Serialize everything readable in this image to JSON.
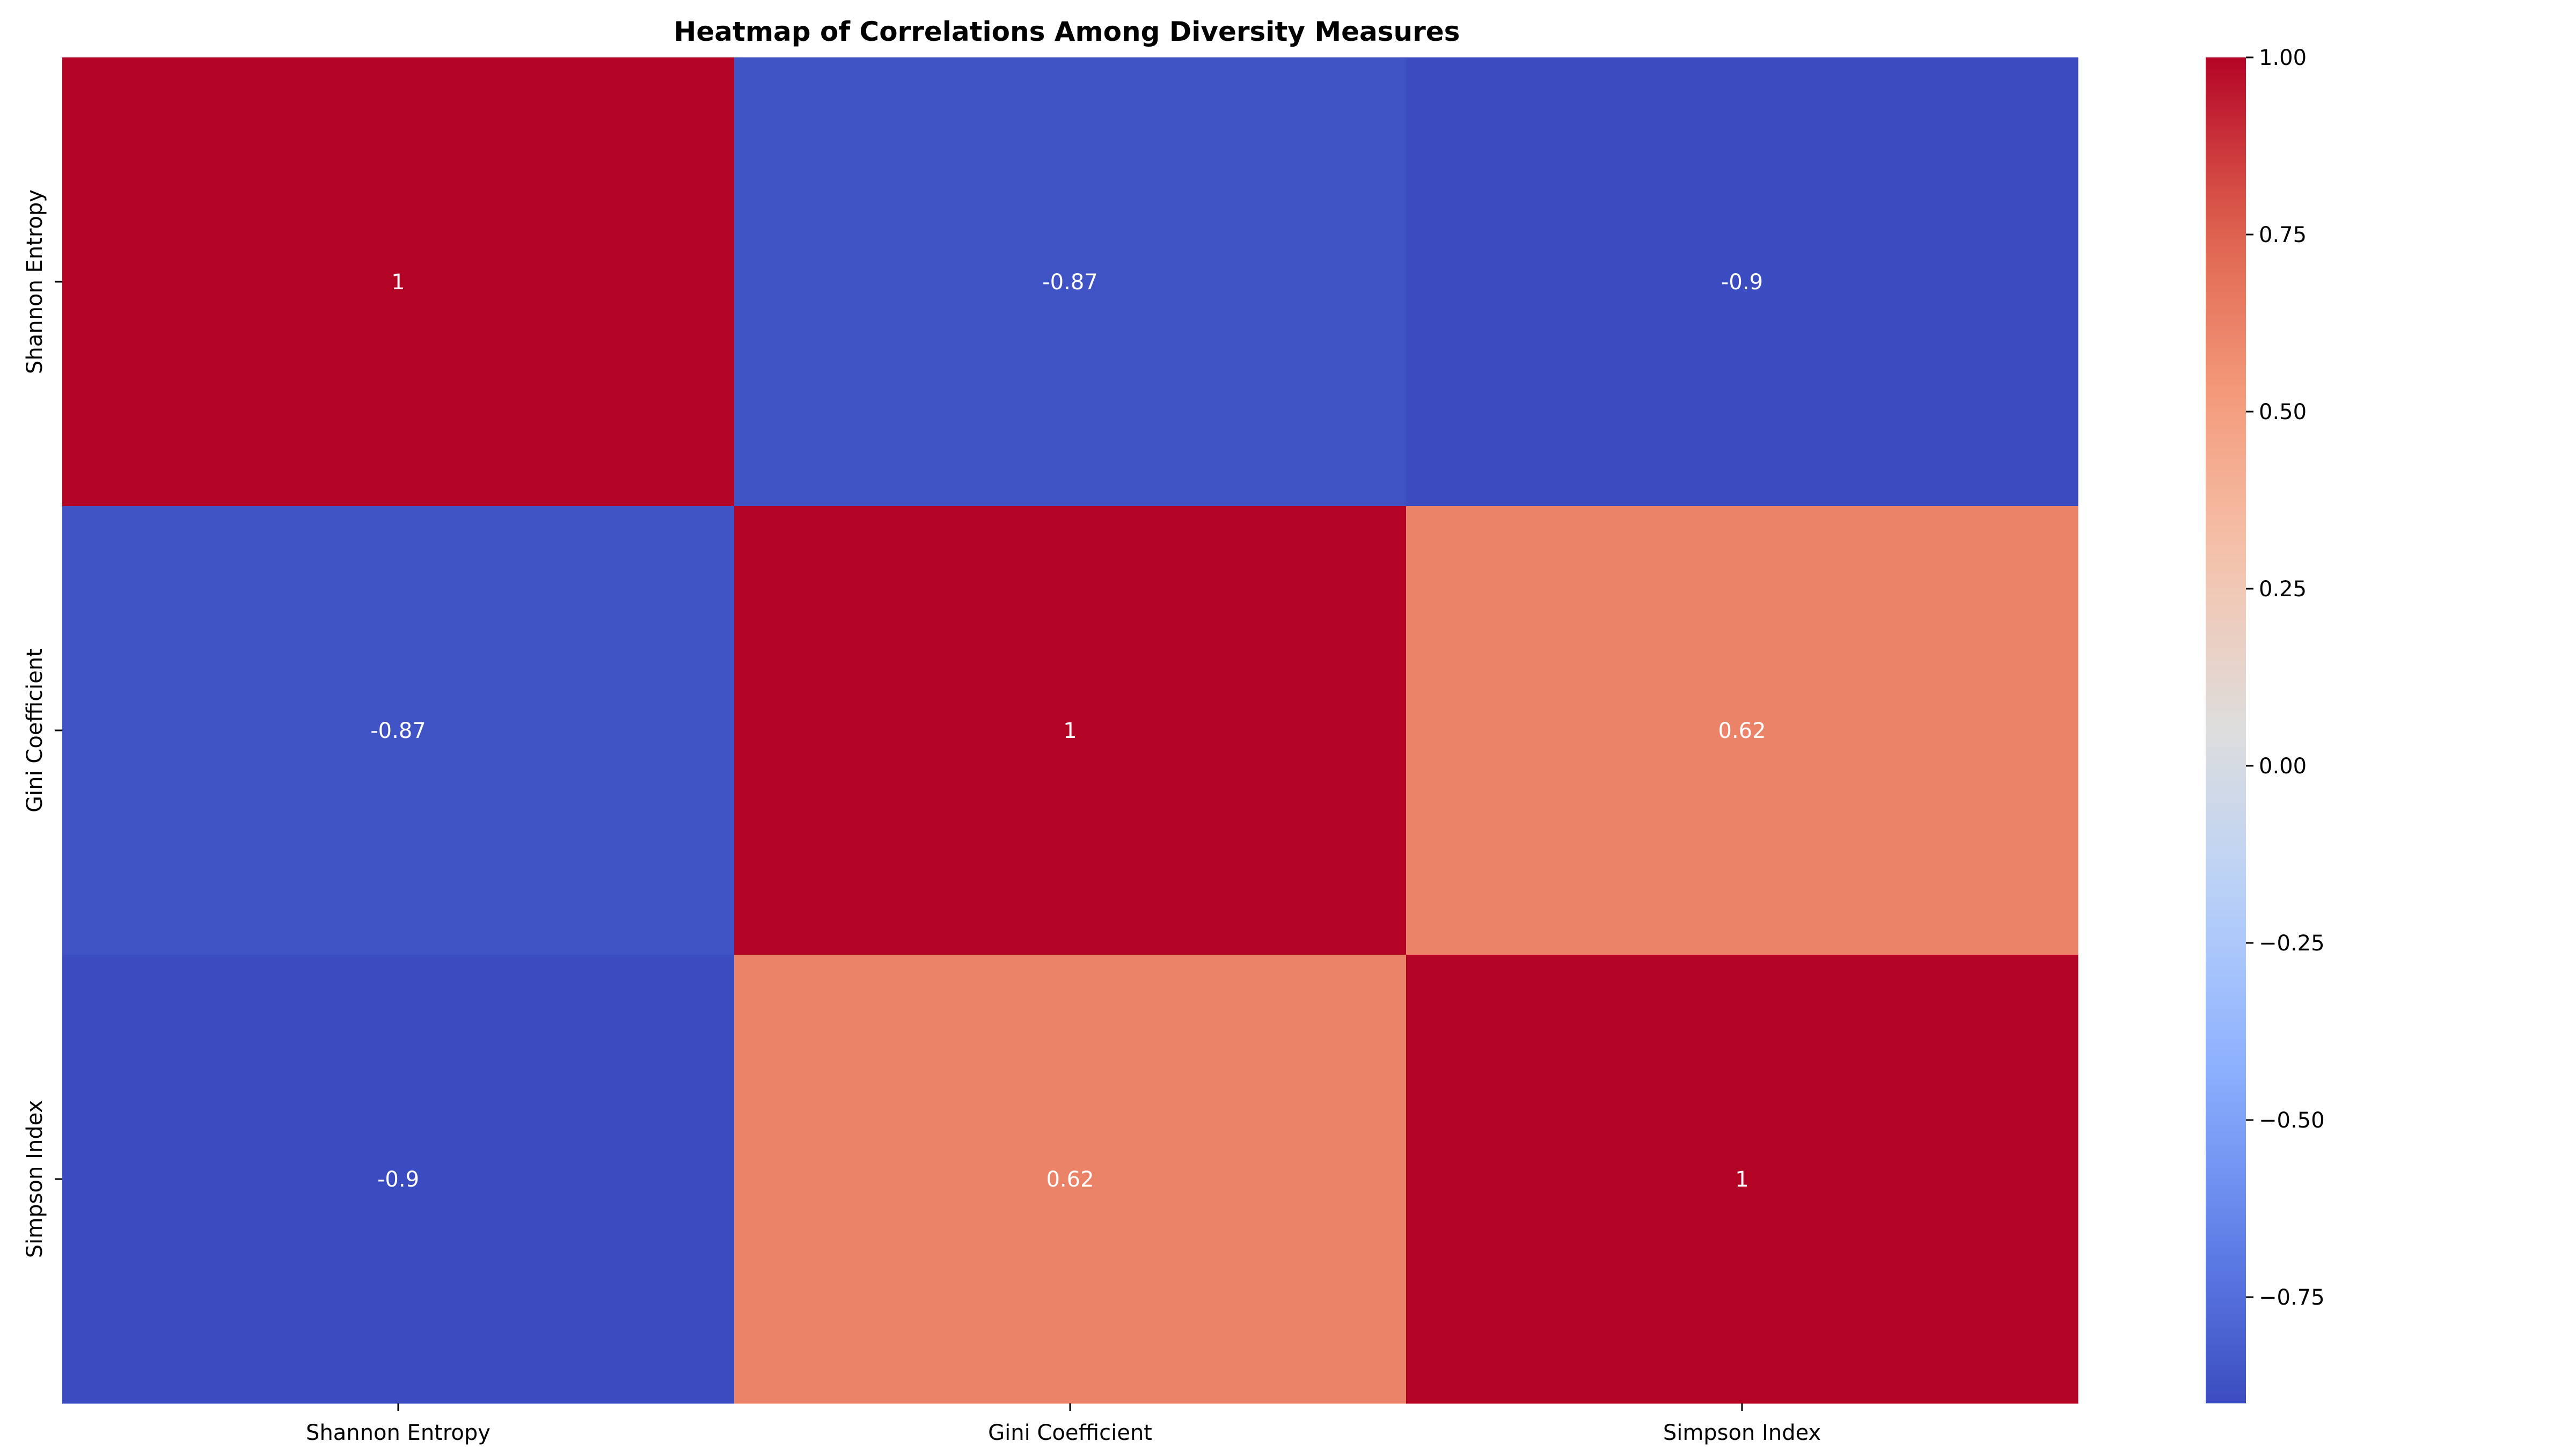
{
  "chart_data": {
    "type": "heatmap",
    "title": "Heatmap of Correlations Among Diversity Measures",
    "xlabel": "",
    "ylabel": "",
    "x_categories": [
      "Shannon Entropy",
      "Gini Coefficient",
      "Simpson Index"
    ],
    "y_categories": [
      "Shannon Entropy",
      "Gini Coefficient",
      "Simpson Index"
    ],
    "values": [
      [
        1,
        -0.87,
        -0.9
      ],
      [
        -0.87,
        1,
        0.62
      ],
      [
        -0.9,
        0.62,
        1
      ]
    ],
    "annotations": [
      [
        "1",
        "-0.87",
        "-0.9"
      ],
      [
        "-0.87",
        "1",
        "0.62"
      ],
      [
        "-0.9",
        "0.62",
        "1"
      ]
    ],
    "colormap": "coolwarm",
    "vmin": -0.9,
    "vmax": 1.0,
    "colorbar_ticks": [
      "1.00",
      "0.75",
      "0.50",
      "0.25",
      "0.00",
      "−0.25",
      "−0.50",
      "−0.75"
    ],
    "colorbar_tick_values": [
      1.0,
      0.75,
      0.5,
      0.25,
      0.0,
      -0.25,
      -0.5,
      -0.75
    ],
    "colors": {
      "text_on_cell": "#ffffff",
      "axis": "#000000"
    }
  }
}
